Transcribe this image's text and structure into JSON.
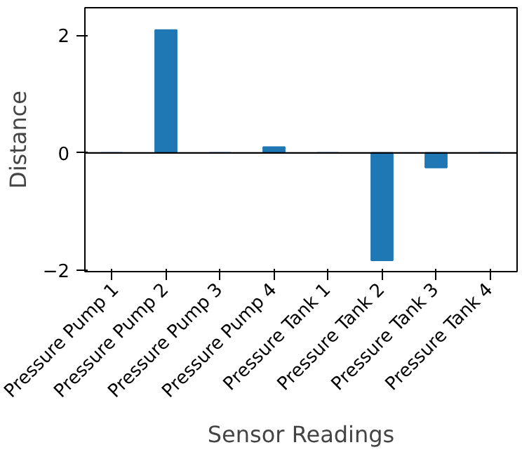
{
  "chart_data": {
    "type": "bar",
    "xlabel": "Sensor Readings",
    "ylabel": "Distance",
    "categories": [
      "Pressure Pump 1",
      "Pressure Pump 2",
      "Pressure Pump 3",
      "Pressure Pump 4",
      "Pressure Tank 1",
      "Pressure Tank 2",
      "Pressure Tank 3",
      "Pressure Tank 4"
    ],
    "values": [
      0,
      2.09,
      0,
      0.1,
      0,
      -1.83,
      -0.25,
      0
    ],
    "color": "#1f77b4",
    "ylim": [
      -2.02,
      2.47
    ],
    "yticks": [
      -2,
      0,
      2
    ],
    "ref_lines": [
      {
        "axis": "y",
        "value": 0,
        "color": "#000000"
      }
    ],
    "grid": false
  }
}
